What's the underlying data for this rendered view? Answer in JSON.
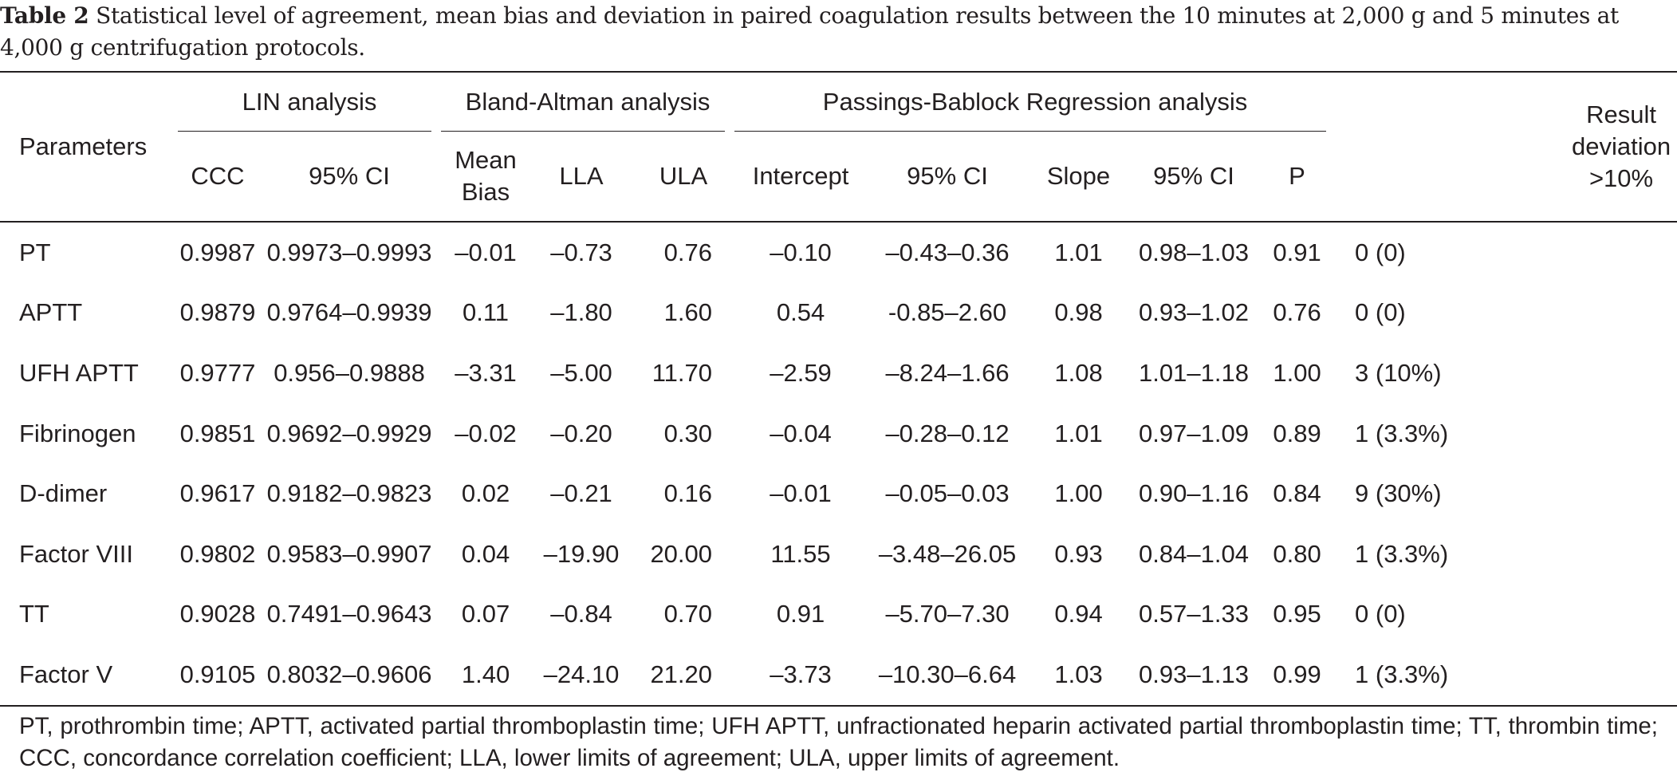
{
  "caption": {
    "label": "Table 2",
    "text": "Statistical level of agreement, mean bias and deviation in paired coagulation results between the 10 minutes at 2,000 g and 5 minutes at 4,000 g centrifugation protocols."
  },
  "table": {
    "groups": {
      "parameters": "Parameters",
      "lin": "LIN analysis",
      "bland": "Bland-Altman analysis",
      "passing": "Passings-Bablock Regression analysis",
      "result": "Result deviation >10%"
    },
    "columns": {
      "ccc": "CCC",
      "lin_ci": "95% CI",
      "mean_bias": "Mean Bias",
      "lla": "LLA",
      "ula": "ULA",
      "intercept": "Intercept",
      "int_ci": "95% CI",
      "slope": "Slope",
      "slope_ci": "95% CI",
      "p": "P"
    },
    "rows": [
      [
        "PT",
        "0.9987",
        "0.9973–0.9993",
        "–0.01",
        "–0.73",
        "0.76",
        "–0.10",
        "–0.43–0.36",
        "1.01",
        "0.98–1.03",
        "0.91",
        "0 (0)"
      ],
      [
        "APTT",
        "0.9879",
        "0.9764–0.9939",
        "0.11",
        "–1.80",
        "1.60",
        "0.54",
        "-0.85–2.60",
        "0.98",
        "0.93–1.02",
        "0.76",
        "0 (0)"
      ],
      [
        "UFH APTT",
        "0.9777",
        "0.956–0.9888",
        "–3.31",
        "–5.00",
        "11.70",
        "–2.59",
        "–8.24–1.66",
        "1.08",
        "1.01–1.18",
        "1.00",
        "3 (10%)"
      ],
      [
        "Fibrinogen",
        "0.9851",
        "0.9692–0.9929",
        "–0.02",
        "–0.20",
        "0.30",
        "–0.04",
        "–0.28–0.12",
        "1.01",
        "0.97–1.09",
        "0.89",
        "1 (3.3%)"
      ],
      [
        "D-dimer",
        "0.9617",
        "0.9182–0.9823",
        "0.02",
        "–0.21",
        "0.16",
        "–0.01",
        "–0.05–0.03",
        "1.00",
        "0.90–1.16",
        "0.84",
        "9 (30%)"
      ],
      [
        "Factor VIII",
        "0.9802",
        "0.9583–0.9907",
        "0.04",
        "–19.90",
        "20.00",
        "11.55",
        "–3.48–26.05",
        "0.93",
        "0.84–1.04",
        "0.80",
        "1 (3.3%)"
      ],
      [
        "TT",
        "0.9028",
        "0.7491–0.9643",
        "0.07",
        "–0.84",
        "0.70",
        "0.91",
        "–5.70–7.30",
        "0.94",
        "0.57–1.33",
        "0.95",
        "0 (0)"
      ],
      [
        "Factor V",
        "0.9105",
        "0.8032–0.9606",
        "1.40",
        "–24.10",
        "21.20",
        "–3.73",
        "–10.30–6.64",
        "1.03",
        "0.93–1.13",
        "0.99",
        "1 (3.3%)"
      ]
    ]
  },
  "footnote": "PT, prothrombin time; APTT, activated partial thromboplastin time; UFH APTT, unfractionated heparin activated partial thromboplastin time; TT, thrombin time; CCC, concordance correlation coefficient; LLA, lower limits of agreement; ULA, upper limits of agreement."
}
